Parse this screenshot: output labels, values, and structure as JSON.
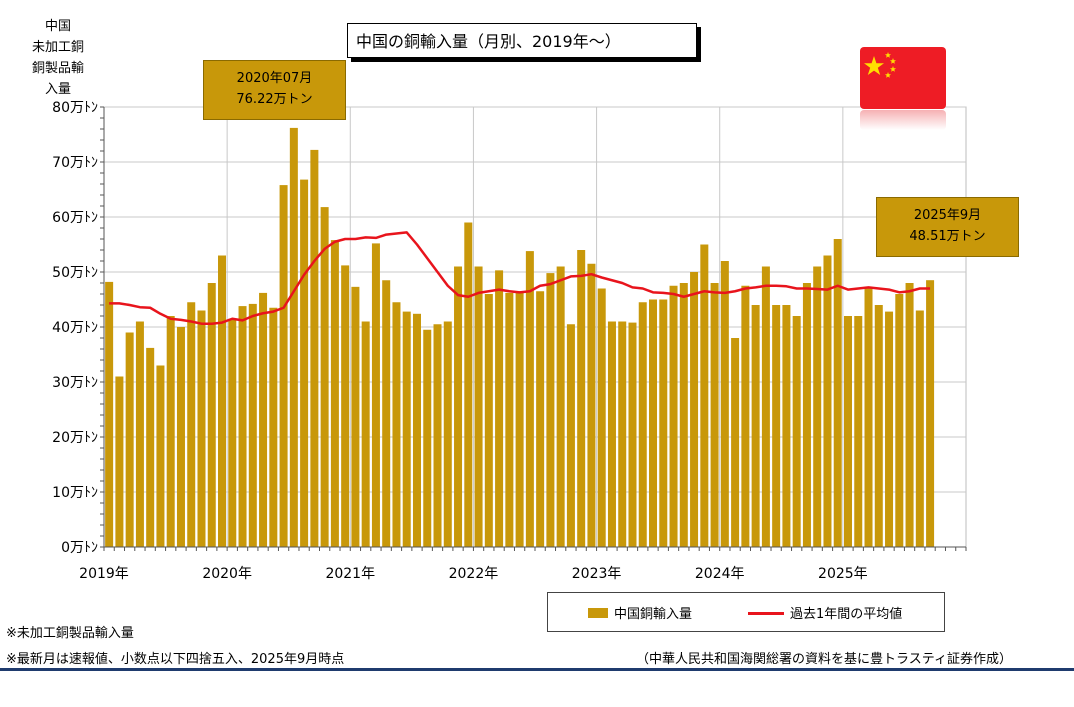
{
  "y_axis_title": [
    "中国",
    "未加工銅",
    "銅製品輸入量"
  ],
  "title": "中国の銅輸入量（月別、2019年〜）",
  "callouts": {
    "peak": {
      "line1": "2020年07月",
      "line2": "76.22万トン"
    },
    "latest": {
      "line1": "2025年9月",
      "line2": "48.51万トン"
    }
  },
  "legend": {
    "bar_label": "中国銅輸入量",
    "line_label": "過去1年間の平均値"
  },
  "notes": {
    "note1": "※未加工銅製品輸入量",
    "note2": "※最新月は速報値、小数点以下四捨五入、2025年9月時点",
    "source": "（中華人民共和国海関総署の資料を基に豊トラスティ証券作成）"
  },
  "colors": {
    "bar": "#C8980A",
    "line": "#e8141c",
    "grid": "#c8c8c8"
  },
  "chart_data": {
    "type": "bar",
    "ylim": [
      0,
      80
    ],
    "y_ticks": [
      {
        "value": 0,
        "label": "0万ﾄﾝ"
      },
      {
        "value": 10,
        "label": "10万ﾄﾝ"
      },
      {
        "value": 20,
        "label": "20万ﾄﾝ"
      },
      {
        "value": 30,
        "label": "30万ﾄﾝ"
      },
      {
        "value": 40,
        "label": "40万ﾄﾝ"
      },
      {
        "value": 50,
        "label": "50万ﾄﾝ"
      },
      {
        "value": 60,
        "label": "60万ﾄﾝ"
      },
      {
        "value": 70,
        "label": "70万ﾄﾝ"
      },
      {
        "value": 80,
        "label": "80万ﾄﾝ"
      }
    ],
    "x_ticks": [
      {
        "month_index": 0,
        "label": "2019年"
      },
      {
        "month_index": 12,
        "label": "2020年"
      },
      {
        "month_index": 24,
        "label": "2021年"
      },
      {
        "month_index": 36,
        "label": "2022年"
      },
      {
        "month_index": 48,
        "label": "2023年"
      },
      {
        "month_index": 60,
        "label": "2024年"
      },
      {
        "month_index": 72,
        "label": "2025年"
      }
    ],
    "months_on_axis": 84,
    "series": [
      {
        "name": "中国銅輸入量",
        "type": "bar",
        "values": [
          48.2,
          31.0,
          39.0,
          41.0,
          36.2,
          33.0,
          42.0,
          40.0,
          44.5,
          43.0,
          48.0,
          53.0,
          41.5,
          43.8,
          44.2,
          46.2,
          43.5,
          65.8,
          76.2,
          66.8,
          72.2,
          61.8,
          55.8,
          51.2,
          47.3,
          41.0,
          55.2,
          48.5,
          44.5,
          42.8,
          42.4,
          39.5,
          40.5,
          41.0,
          51.0,
          59.0,
          51.0,
          46.0,
          50.3,
          46.2,
          46.5,
          53.8,
          46.5,
          49.8,
          51.0,
          40.5,
          54.0,
          51.5,
          47.0,
          41.0,
          41.0,
          40.8,
          44.5,
          45.0,
          45.0,
          47.5,
          48.0,
          50.0,
          55.0,
          48.0,
          52.0,
          38.0,
          47.5,
          44.0,
          51.0,
          44.0,
          44.0,
          42.0,
          48.0,
          51.0,
          53.0,
          56.0,
          42.0,
          42.0,
          47.0,
          44.0,
          42.8,
          46.0,
          48.0,
          43.0,
          48.51
        ]
      },
      {
        "name": "過去1年間の平均値",
        "type": "line",
        "values": [
          44.3,
          44.3,
          44.0,
          43.6,
          43.5,
          42.4,
          41.5,
          41.3,
          41.0,
          40.6,
          40.6,
          40.8,
          41.5,
          41.2,
          42.0,
          42.5,
          42.8,
          43.5,
          46.5,
          49.5,
          52.0,
          54.2,
          55.5,
          56.0,
          56.0,
          56.3,
          56.2,
          56.8,
          57.0,
          57.2,
          55.0,
          52.5,
          50.0,
          47.5,
          45.8,
          45.5,
          46.2,
          46.5,
          46.8,
          46.5,
          46.3,
          46.5,
          47.5,
          47.8,
          48.5,
          49.2,
          49.3,
          49.6,
          49.0,
          48.5,
          48.0,
          47.2,
          47.0,
          46.3,
          46.2,
          46.0,
          45.5,
          46.0,
          46.5,
          46.3,
          46.2,
          46.5,
          47.0,
          47.2,
          47.5,
          47.5,
          47.4,
          47.0,
          47.0,
          46.9,
          46.8,
          47.5,
          46.8,
          47.0,
          47.2,
          47.0,
          46.8,
          46.3,
          46.5,
          47.0,
          47.0
        ]
      }
    ]
  }
}
